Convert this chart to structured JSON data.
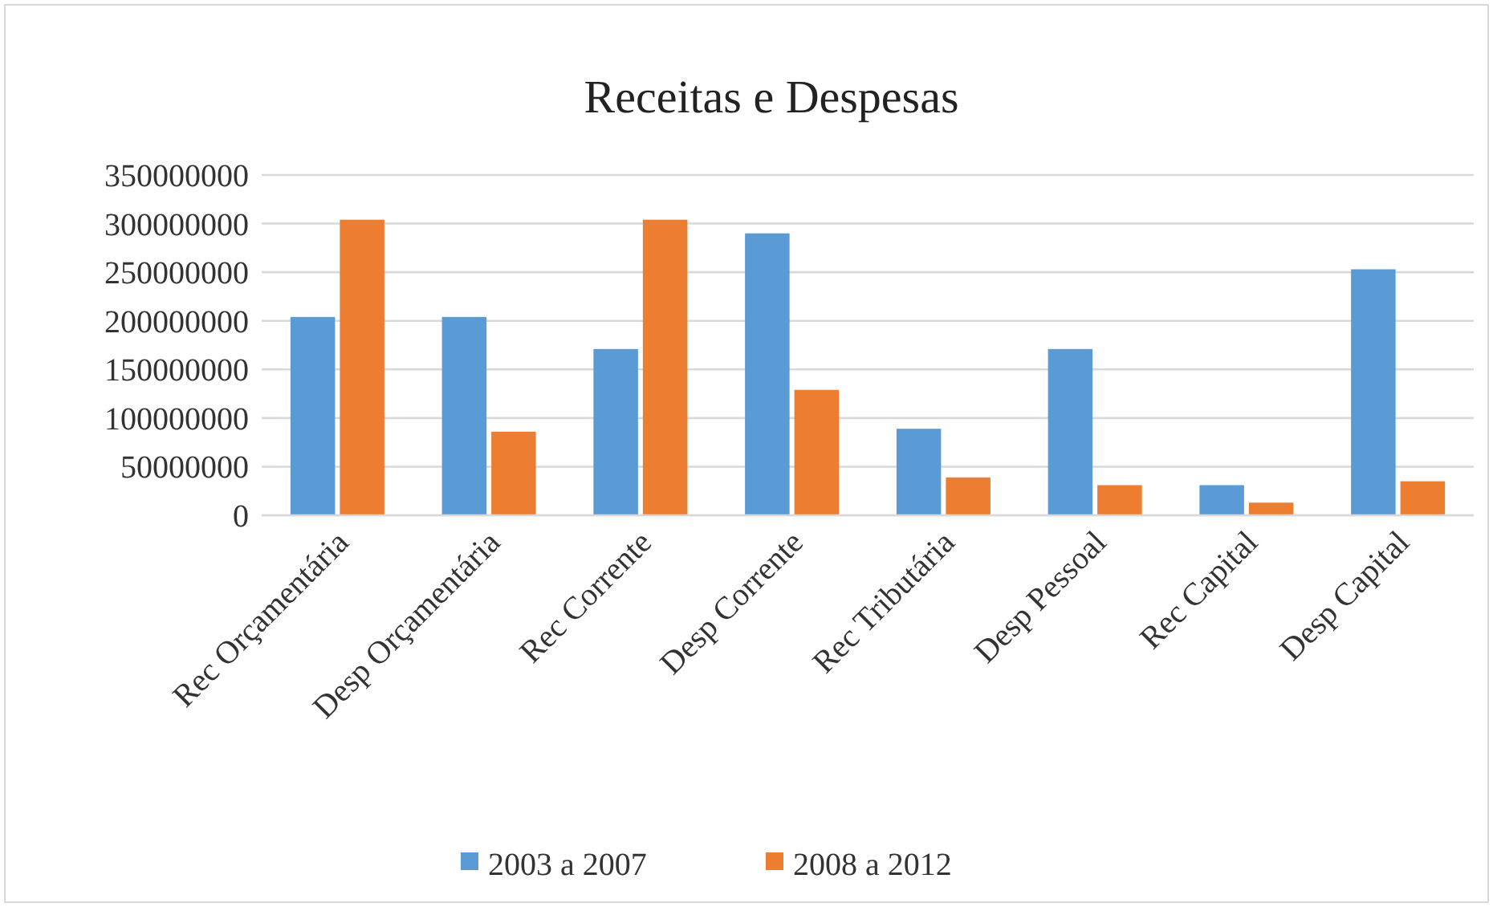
{
  "chart_data": {
    "type": "bar",
    "title": "Receitas e Despesas",
    "categories": [
      "Rec Orçamentária",
      "Desp Orçamentária",
      "Rec Corrente",
      "Desp Corrente",
      "Rec Tributária",
      "Desp Pessoal",
      "Rec Capital",
      "Desp Capital"
    ],
    "series": [
      {
        "name": "2003 a 2007",
        "color": "#5b9bd5",
        "values": [
          204000000,
          204000000,
          171000000,
          290000000,
          89000000,
          171000000,
          31000000,
          253000000
        ]
      },
      {
        "name": "2008 a 2012",
        "color": "#ed7d31",
        "values": [
          304000000,
          86000000,
          304000000,
          129000000,
          39000000,
          31000000,
          13000000,
          35000000
        ]
      }
    ],
    "ylim": [
      0,
      350000000
    ],
    "yticks": [
      0,
      50000000,
      100000000,
      150000000,
      200000000,
      250000000,
      300000000,
      350000000
    ],
    "grid": "y",
    "legend": "bottom"
  }
}
